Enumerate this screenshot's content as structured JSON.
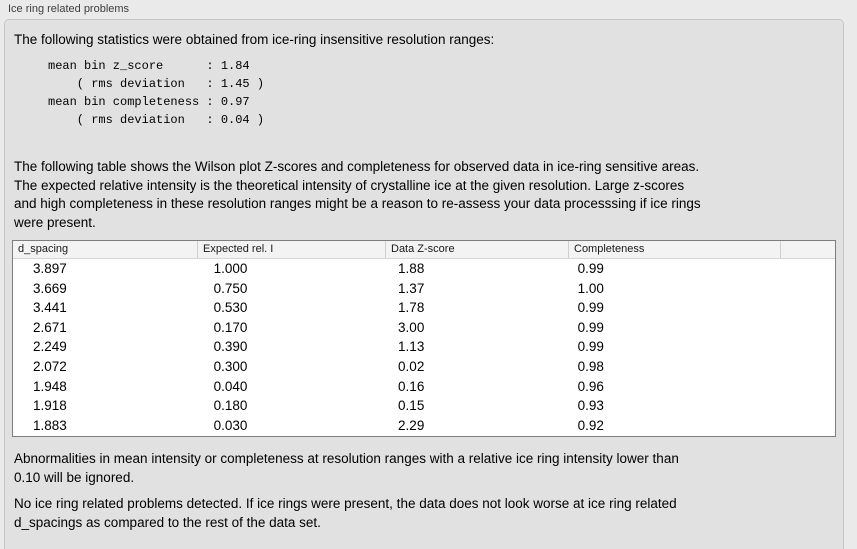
{
  "panel": {
    "title": "Ice ring related problems",
    "intro": "The following statistics were obtained from ice-ring insensitive resolution ranges:",
    "stats": "mean bin z_score      : 1.84\n    ( rms deviation   : 1.45 )\nmean bin completeness : 0.97\n    ( rms deviation   : 0.04 )",
    "table_description": "The following table shows the Wilson plot Z-scores and completeness for observed data in ice-ring sensitive areas.\nThe expected relative intensity is the theoretical intensity of crystalline ice at the given resolution. Large z-scores\nand high completeness in these resolution ranges might be a reason to re-assess your data processsing if ice rings\nwere present.",
    "ignore_note": "Abnormalities in mean intensity or completeness at resolution ranges with a relative ice ring intensity lower than\n0.10 will be ignored.",
    "result_note": "No ice ring related problems detected. If ice rings were present, the data does not look worse at ice ring related\nd_spacings as compared to the rest of the data set."
  },
  "table": {
    "columns": [
      "d_spacing",
      "Expected rel. I",
      "Data Z-score",
      "Completeness"
    ],
    "rows": [
      [
        "3.897",
        "1.000",
        "1.88",
        "0.99"
      ],
      [
        "3.669",
        "0.750",
        "1.37",
        "1.00"
      ],
      [
        "3.441",
        "0.530",
        "1.78",
        "0.99"
      ],
      [
        "2.671",
        "0.170",
        "3.00",
        "0.99"
      ],
      [
        "2.249",
        "0.390",
        "1.13",
        "0.99"
      ],
      [
        "2.072",
        "0.300",
        "0.02",
        "0.98"
      ],
      [
        "1.948",
        "0.040",
        "0.16",
        "0.96"
      ],
      [
        "1.918",
        "0.180",
        "0.15",
        "0.93"
      ],
      [
        "1.883",
        "0.030",
        "2.29",
        "0.92"
      ]
    ]
  },
  "colors": {
    "window_background": "#eaeaea",
    "groupbox_background": "#e1e1e1",
    "groupbox_border": "#c6c6c6",
    "table_border": "#7d7d7d",
    "table_header_background": "#f3f3f3",
    "text": "#000000"
  }
}
